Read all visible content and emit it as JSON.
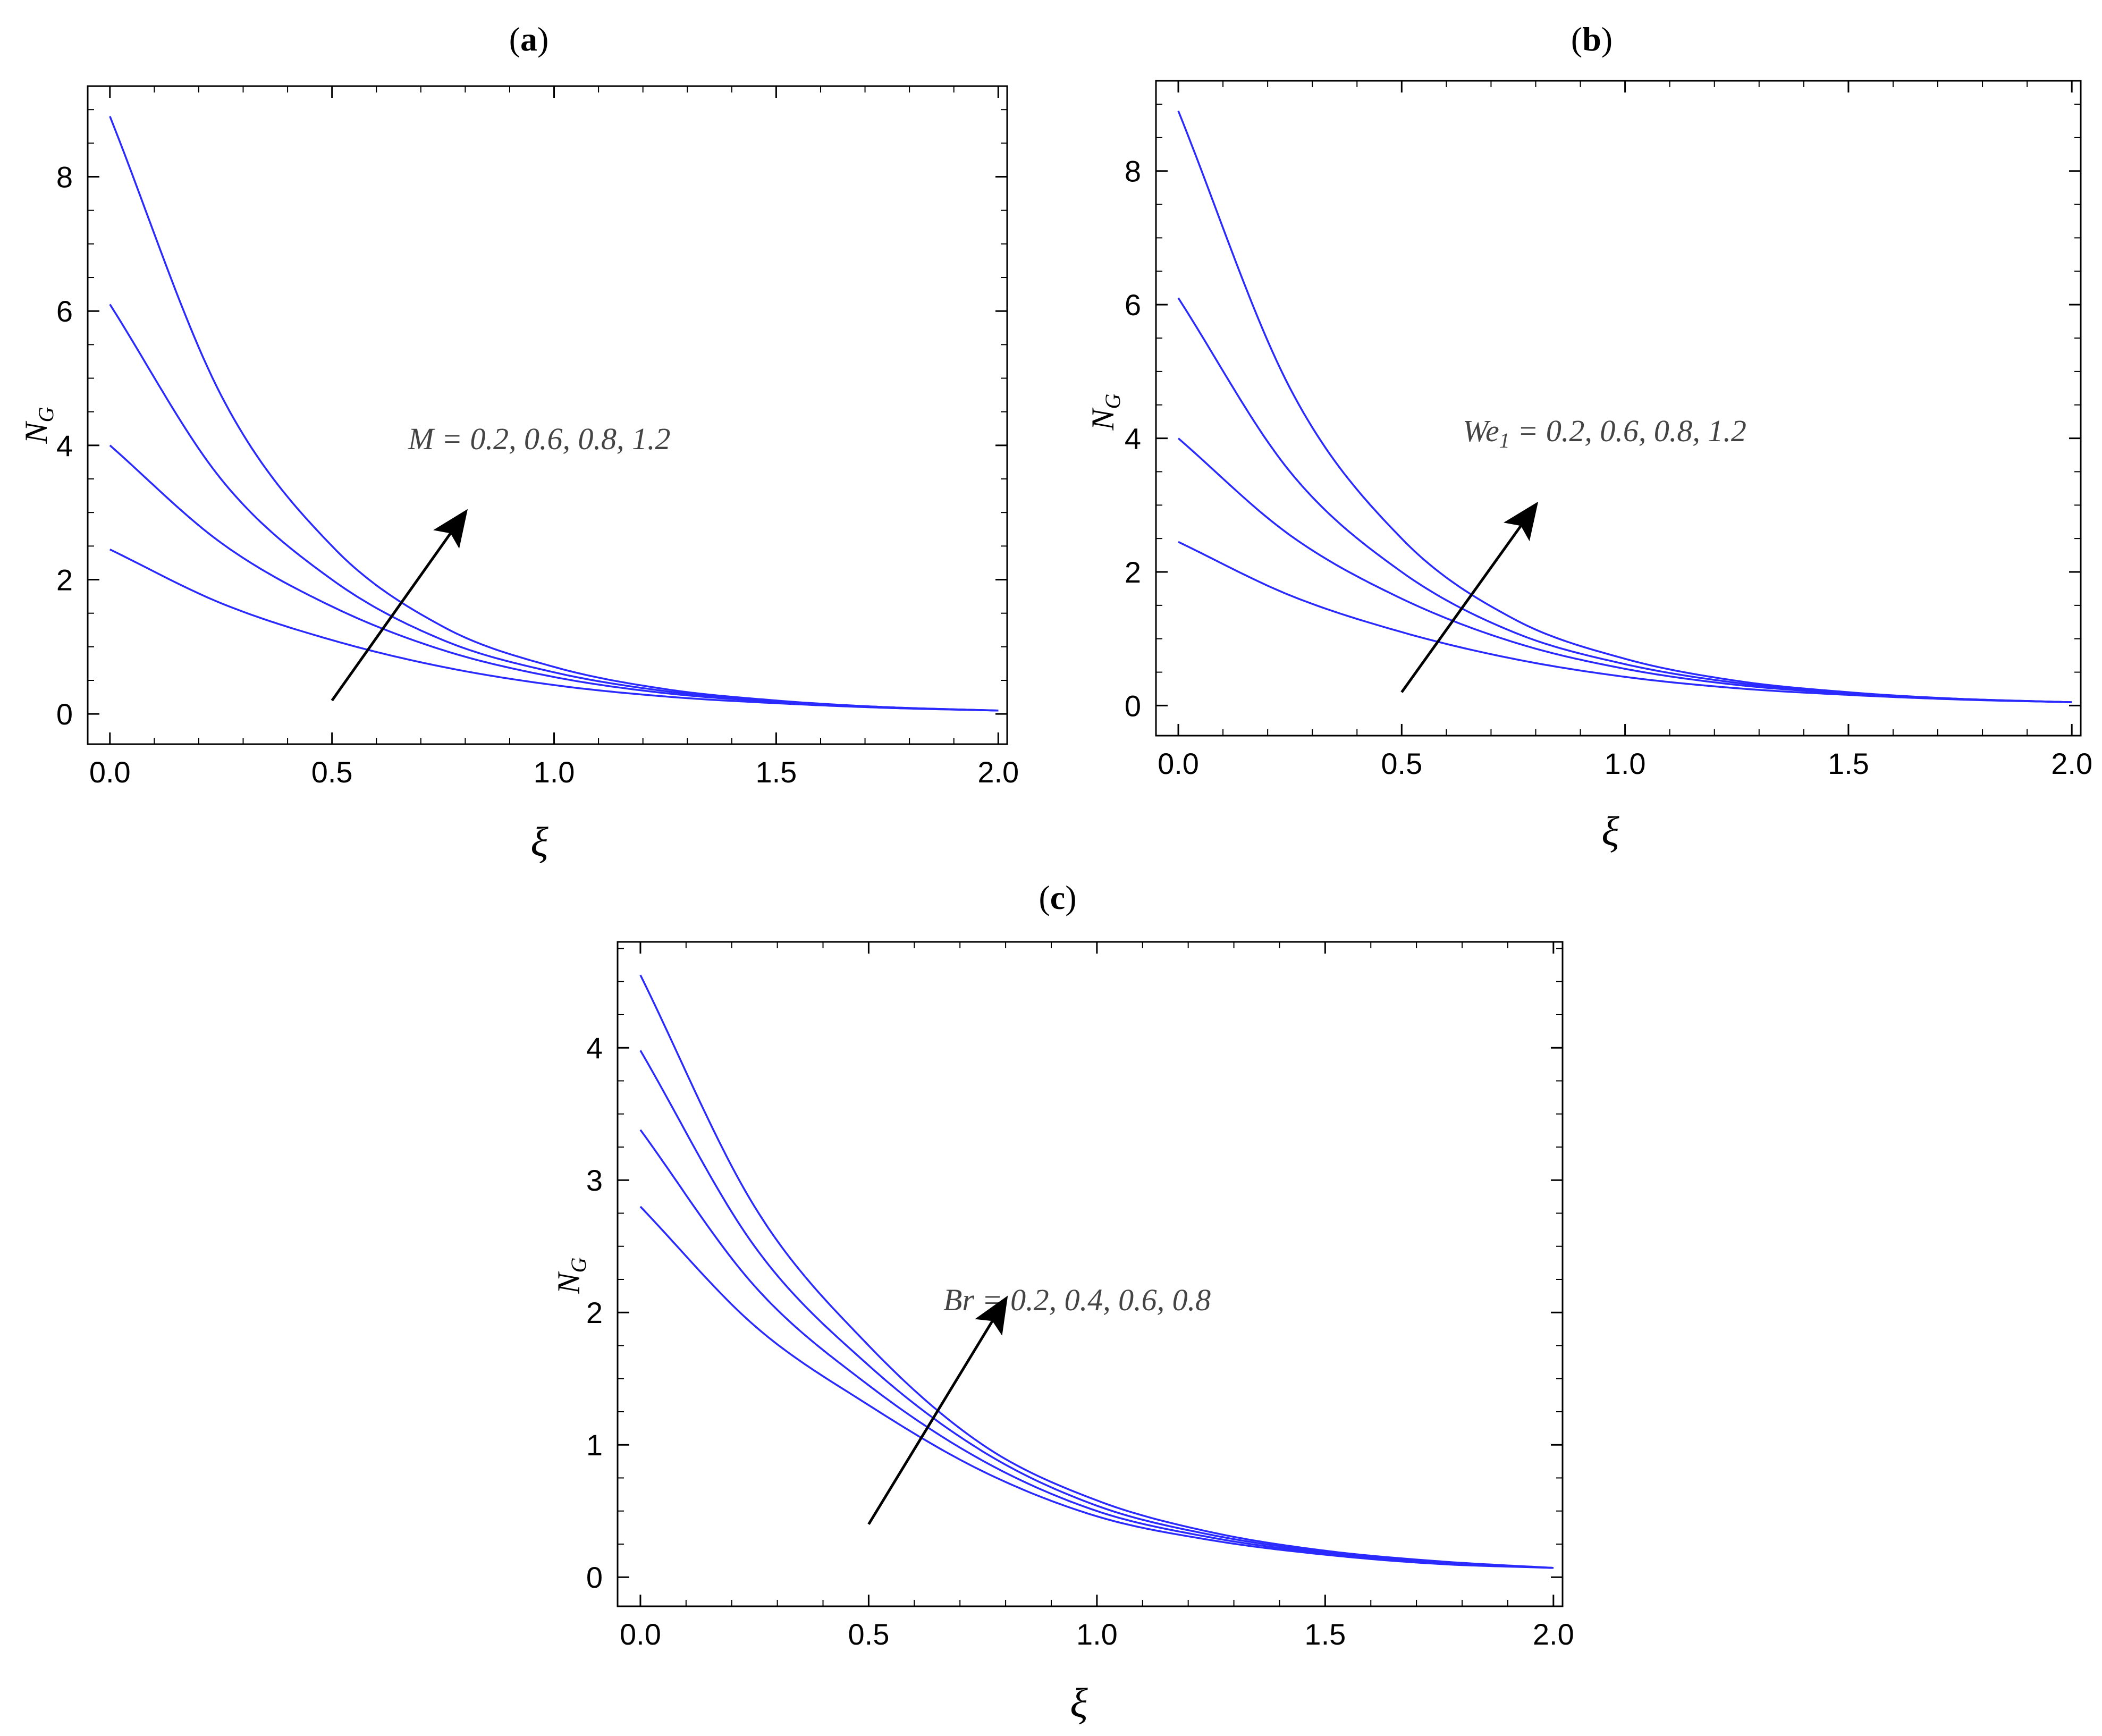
{
  "panels": [
    {
      "label_open": "(",
      "label_letter": "a",
      "label_close": ")",
      "annotation_param": "M",
      "annotation_text": " = 0.2, 0.6, 0.8, 1.2"
    },
    {
      "label_open": "(",
      "label_letter": "b",
      "label_close": ")",
      "annotation_param": "We",
      "annotation_sub": "1",
      "annotation_text": " = 0.2, 0.6, 0.8, 1.2"
    },
    {
      "label_open": "(",
      "label_letter": "c",
      "label_close": ")",
      "annotation_param": "Br",
      "annotation_text": " = 0.2, 0.4, 0.6, 0.8"
    }
  ],
  "colors": {
    "curve": "#2a2aff",
    "frame": "#000000",
    "arrow": "#000000"
  },
  "chart_data": [
    {
      "type": "line",
      "xlabel": "ξ",
      "ylabel_main": "N",
      "ylabel_sub": "G",
      "xlim": [
        -0.05,
        2.02
      ],
      "ylim": [
        -0.45,
        9.35
      ],
      "xticks": [
        0.0,
        0.5,
        1.0,
        1.5,
        2.0
      ],
      "xtick_labels": [
        "0.0",
        "0.5",
        "1.0",
        "1.5",
        "2.0"
      ],
      "yticks": [
        0,
        2,
        4,
        6,
        8
      ],
      "ytick_labels": [
        "0",
        "2",
        "4",
        "6",
        "8"
      ],
      "grid": false,
      "arrow": {
        "from": [
          0.5,
          0.2
        ],
        "to": [
          0.8,
          3.0
        ]
      },
      "series": [
        {
          "x": [
            0.0,
            0.25,
            0.5,
            0.75,
            1.0,
            1.25,
            1.5,
            1.75,
            2.0
          ],
          "values": [
            8.9,
            4.75,
            2.5,
            1.3,
            0.7,
            0.37,
            0.2,
            0.1,
            0.05
          ]
        },
        {
          "x": [
            0.0,
            0.25,
            0.5,
            0.75,
            1.0,
            1.25,
            1.5,
            1.75,
            2.0
          ],
          "values": [
            6.1,
            3.5,
            2.0,
            1.1,
            0.62,
            0.34,
            0.19,
            0.1,
            0.05
          ]
        },
        {
          "x": [
            0.0,
            0.25,
            0.5,
            0.75,
            1.0,
            1.25,
            1.5,
            1.75,
            2.0
          ],
          "values": [
            4.0,
            2.55,
            1.6,
            0.95,
            0.55,
            0.31,
            0.18,
            0.1,
            0.05
          ]
        },
        {
          "x": [
            0.0,
            0.25,
            0.5,
            0.75,
            1.0,
            1.25,
            1.5,
            1.75,
            2.0
          ],
          "values": [
            2.45,
            1.65,
            1.1,
            0.7,
            0.43,
            0.26,
            0.16,
            0.09,
            0.05
          ]
        }
      ]
    },
    {
      "type": "line",
      "xlabel": "ξ",
      "ylabel_main": "N",
      "ylabel_sub": "G",
      "xlim": [
        -0.05,
        2.02
      ],
      "ylim": [
        -0.45,
        9.35
      ],
      "xticks": [
        0.0,
        0.5,
        1.0,
        1.5,
        2.0
      ],
      "xtick_labels": [
        "0.0",
        "0.5",
        "1.0",
        "1.5",
        "2.0"
      ],
      "yticks": [
        0,
        2,
        4,
        6,
        8
      ],
      "ytick_labels": [
        "0",
        "2",
        "4",
        "6",
        "8"
      ],
      "grid": false,
      "arrow": {
        "from": [
          0.5,
          0.2
        ],
        "to": [
          0.8,
          3.0
        ]
      },
      "series": [
        {
          "x": [
            0.0,
            0.25,
            0.5,
            0.75,
            1.0,
            1.25,
            1.5,
            1.75,
            2.0
          ],
          "values": [
            8.9,
            4.75,
            2.5,
            1.3,
            0.7,
            0.37,
            0.2,
            0.1,
            0.05
          ]
        },
        {
          "x": [
            0.0,
            0.25,
            0.5,
            0.75,
            1.0,
            1.25,
            1.5,
            1.75,
            2.0
          ],
          "values": [
            6.1,
            3.5,
            2.0,
            1.1,
            0.62,
            0.34,
            0.19,
            0.1,
            0.05
          ]
        },
        {
          "x": [
            0.0,
            0.25,
            0.5,
            0.75,
            1.0,
            1.25,
            1.5,
            1.75,
            2.0
          ],
          "values": [
            4.0,
            2.55,
            1.6,
            0.95,
            0.55,
            0.31,
            0.18,
            0.1,
            0.05
          ]
        },
        {
          "x": [
            0.0,
            0.25,
            0.5,
            0.75,
            1.0,
            1.25,
            1.5,
            1.75,
            2.0
          ],
          "values": [
            2.45,
            1.65,
            1.1,
            0.7,
            0.43,
            0.26,
            0.16,
            0.09,
            0.05
          ]
        }
      ]
    },
    {
      "type": "line",
      "xlabel": "ξ",
      "ylabel_main": "N",
      "ylabel_sub": "G",
      "xlim": [
        -0.05,
        2.02
      ],
      "ylim": [
        -0.22,
        4.8
      ],
      "xticks": [
        0.0,
        0.5,
        1.0,
        1.5,
        2.0
      ],
      "xtick_labels": [
        "0.0",
        "0.5",
        "1.0",
        "1.5",
        "2.0"
      ],
      "yticks": [
        0,
        1,
        2,
        3,
        4
      ],
      "ytick_labels": [
        "0",
        "1",
        "2",
        "3",
        "4"
      ],
      "grid": false,
      "arrow": {
        "from": [
          0.5,
          0.4
        ],
        "to": [
          0.8,
          2.1
        ]
      },
      "series": [
        {
          "x": [
            0.0,
            0.25,
            0.5,
            0.75,
            1.0,
            1.25,
            1.5,
            1.75,
            2.0
          ],
          "values": [
            4.55,
            2.8,
            1.75,
            1.0,
            0.58,
            0.34,
            0.2,
            0.12,
            0.07
          ]
        },
        {
          "x": [
            0.0,
            0.25,
            0.5,
            0.75,
            1.0,
            1.25,
            1.5,
            1.75,
            2.0
          ],
          "values": [
            3.98,
            2.5,
            1.6,
            0.95,
            0.54,
            0.32,
            0.19,
            0.11,
            0.07
          ]
        },
        {
          "x": [
            0.0,
            0.25,
            0.5,
            0.75,
            1.0,
            1.25,
            1.5,
            1.75,
            2.0
          ],
          "values": [
            3.38,
            2.2,
            1.45,
            0.88,
            0.5,
            0.3,
            0.18,
            0.11,
            0.07
          ]
        },
        {
          "x": [
            0.0,
            0.25,
            0.5,
            0.75,
            1.0,
            1.25,
            1.5,
            1.75,
            2.0
          ],
          "values": [
            2.8,
            1.9,
            1.3,
            0.8,
            0.46,
            0.28,
            0.17,
            0.1,
            0.07
          ]
        }
      ]
    }
  ]
}
